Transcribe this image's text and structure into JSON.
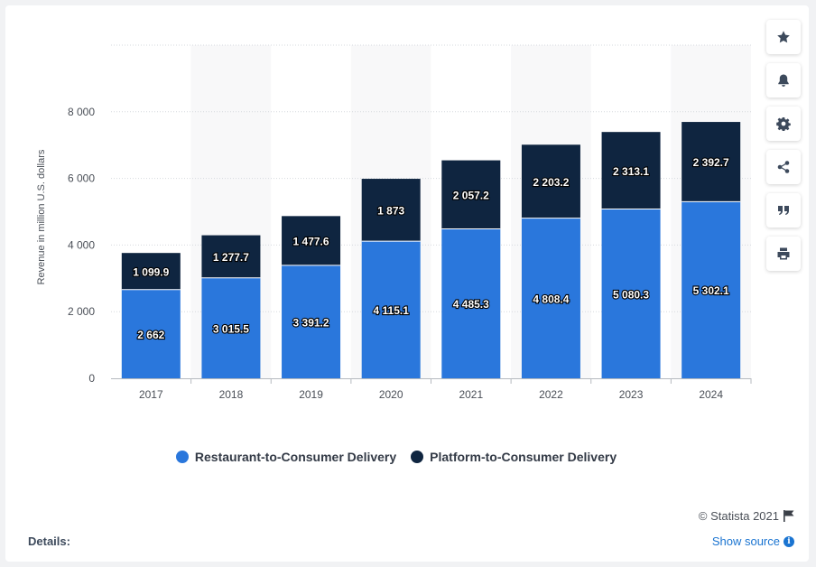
{
  "chart_data": {
    "type": "bar",
    "stacked": true,
    "categories": [
      "2017",
      "2018",
      "2019",
      "2020",
      "2021",
      "2022",
      "2023",
      "2024"
    ],
    "series": [
      {
        "name": "Restaurant-to-Consumer Delivery",
        "color": "#2a77dc",
        "values": [
          2662,
          3015.5,
          3391.2,
          4115.1,
          4485.3,
          4808.4,
          5080.3,
          5302.1
        ],
        "labels": [
          "2 662",
          "3 015.5",
          "3 391.2",
          "4 115.1",
          "4 485.3",
          "4 808.4",
          "5 080.3",
          "5 302.1"
        ]
      },
      {
        "name": "Platform-to-Consumer Delivery",
        "color": "#0f2540",
        "values": [
          1099.9,
          1277.7,
          1477.6,
          1873,
          2057.2,
          2203.2,
          2313.1,
          2392.7
        ],
        "labels": [
          "1 099.9",
          "1 277.7",
          "1 477.6",
          "1 873",
          "2 057.2",
          "2 203.2",
          "2 313.1",
          "2 392.7"
        ]
      }
    ],
    "ylabel": "Revenue in million U.S. dollars",
    "ylim": [
      0,
      10000
    ],
    "yticks": [
      0,
      2000,
      4000,
      6000,
      8000
    ],
    "ytick_labels": [
      "0",
      "2 000",
      "4 000",
      "6 000",
      "8 000"
    ],
    "grid": true,
    "legend_position": "bottom-center"
  },
  "toolbar": {
    "buttons": [
      {
        "icon": "star-icon",
        "name": "favorite-button"
      },
      {
        "icon": "bell-icon",
        "name": "notification-button"
      },
      {
        "icon": "gear-icon",
        "name": "settings-button"
      },
      {
        "icon": "share-icon",
        "name": "share-button"
      },
      {
        "icon": "quote-icon",
        "name": "cite-button"
      },
      {
        "icon": "print-icon",
        "name": "print-button"
      }
    ]
  },
  "footer": {
    "copyright": "© Statista 2021",
    "details_label": "Details:",
    "show_source_label": "Show source"
  }
}
